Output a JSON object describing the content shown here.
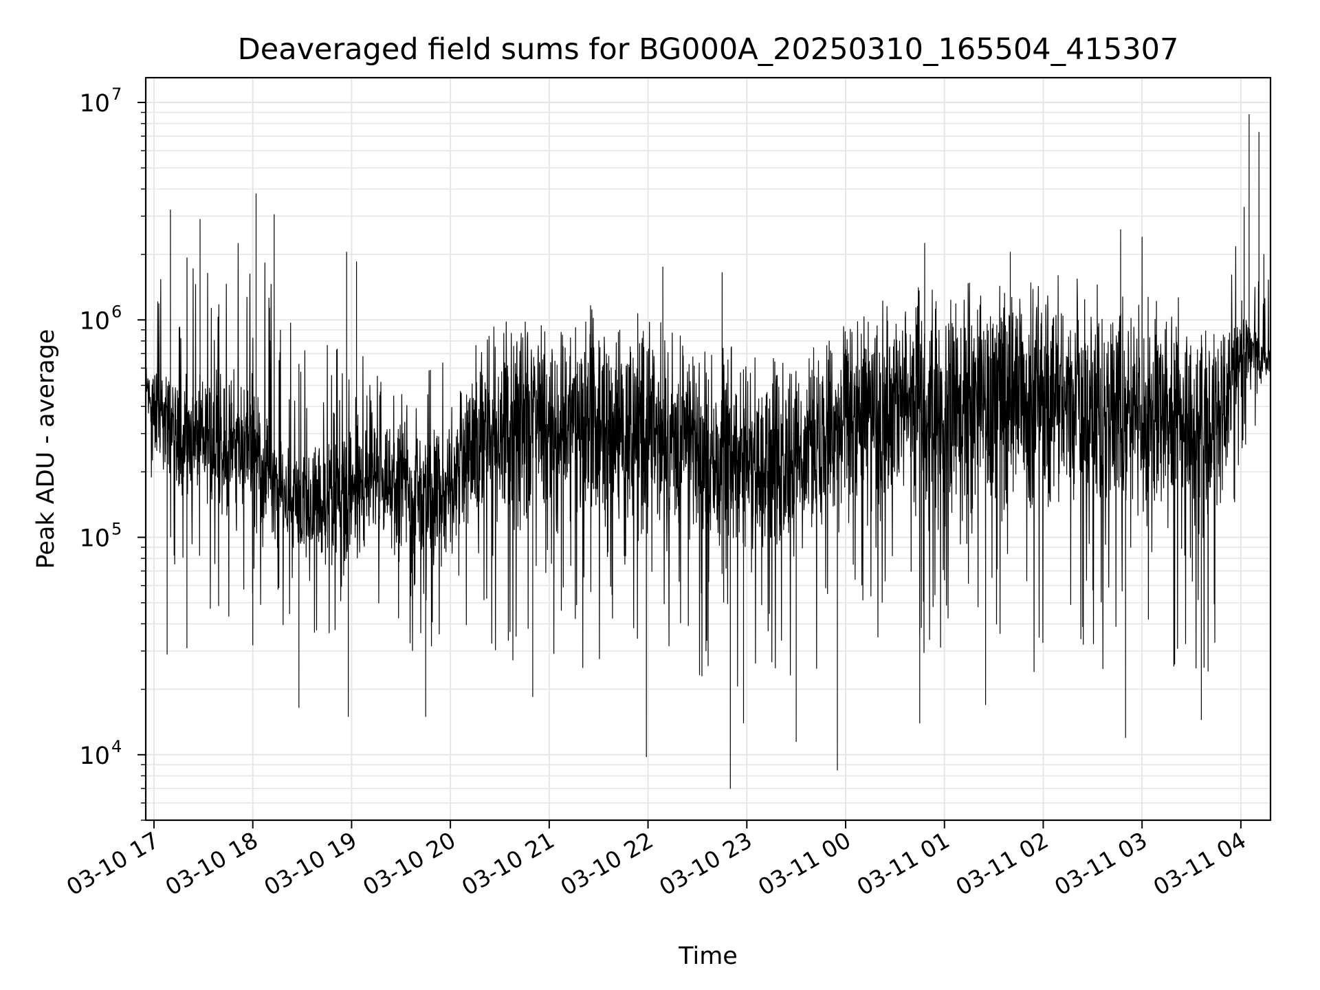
{
  "chart_data": {
    "type": "line",
    "title": "Deaveraged field sums for BG000A_20250310_165504_415307",
    "xlabel": "Time",
    "ylabel": "Peak ADU - average",
    "yscale": "log",
    "ylim": [
      5000,
      13000000
    ],
    "xlim": [
      "2025-03-10 16:55",
      "2025-03-11 04:18"
    ],
    "grid": true,
    "line_color": "#000000",
    "grid_color": "#e6e6e6",
    "x_ticks": [
      {
        "value": "2025-03-10 17:00",
        "label": "03-10 17"
      },
      {
        "value": "2025-03-10 18:00",
        "label": "03-10 18"
      },
      {
        "value": "2025-03-10 19:00",
        "label": "03-10 19"
      },
      {
        "value": "2025-03-10 20:00",
        "label": "03-10 20"
      },
      {
        "value": "2025-03-10 21:00",
        "label": "03-10 21"
      },
      {
        "value": "2025-03-10 22:00",
        "label": "03-10 22"
      },
      {
        "value": "2025-03-10 23:00",
        "label": "03-10 23"
      },
      {
        "value": "2025-03-11 00:00",
        "label": "03-11 00"
      },
      {
        "value": "2025-03-11 01:00",
        "label": "03-11 01"
      },
      {
        "value": "2025-03-11 02:00",
        "label": "03-11 02"
      },
      {
        "value": "2025-03-11 03:00",
        "label": "03-11 03"
      },
      {
        "value": "2025-03-11 04:00",
        "label": "03-11 04"
      }
    ],
    "y_ticks": [
      {
        "value": 10000,
        "base": "10",
        "exp": "4"
      },
      {
        "value": 100000,
        "base": "10",
        "exp": "5"
      },
      {
        "value": 1000000,
        "base": "10",
        "exp": "6"
      },
      {
        "value": 10000000,
        "base": "10",
        "exp": "7"
      }
    ],
    "series": [
      {
        "x": [
          "2025-03-10 16:55",
          "2025-03-10 17:00",
          "2025-03-10 17:15",
          "2025-03-10 17:30",
          "2025-03-10 17:45",
          "2025-03-10 18:00",
          "2025-03-10 18:15",
          "2025-03-10 18:30",
          "2025-03-10 18:45",
          "2025-03-10 19:00",
          "2025-03-10 19:15",
          "2025-03-10 19:30",
          "2025-03-10 19:45",
          "2025-03-10 20:00",
          "2025-03-10 20:15",
          "2025-03-10 20:30",
          "2025-03-10 20:45",
          "2025-03-10 21:00",
          "2025-03-10 21:15",
          "2025-03-10 21:30",
          "2025-03-10 21:45",
          "2025-03-10 22:00",
          "2025-03-10 22:15",
          "2025-03-10 22:30",
          "2025-03-10 22:45",
          "2025-03-10 23:00",
          "2025-03-10 23:15",
          "2025-03-10 23:30",
          "2025-03-10 23:45",
          "2025-03-11 00:00",
          "2025-03-11 00:15",
          "2025-03-11 00:30",
          "2025-03-11 00:45",
          "2025-03-11 01:00",
          "2025-03-11 01:15",
          "2025-03-11 01:30",
          "2025-03-11 01:45",
          "2025-03-11 02:00",
          "2025-03-11 02:15",
          "2025-03-11 02:30",
          "2025-03-11 02:45",
          "2025-03-11 03:00",
          "2025-03-11 03:15",
          "2025-03-11 03:30",
          "2025-03-11 03:45",
          "2025-03-11 04:00",
          "2025-03-11 04:15"
        ],
        "median": [
          520000,
          400000,
          300000,
          280000,
          260000,
          280000,
          160000,
          140000,
          150000,
          160000,
          170000,
          160000,
          150000,
          170000,
          250000,
          300000,
          320000,
          320000,
          340000,
          320000,
          320000,
          310000,
          290000,
          260000,
          240000,
          230000,
          230000,
          240000,
          270000,
          350000,
          380000,
          400000,
          420000,
          430000,
          430000,
          440000,
          440000,
          440000,
          420000,
          400000,
          380000,
          380000,
          360000,
          350000,
          340000,
          750000,
          650000
        ],
        "low": [
          300000,
          100000,
          60000,
          50000,
          40000,
          50000,
          40000,
          35000,
          30000,
          30000,
          30000,
          30000,
          25000,
          30000,
          30000,
          25000,
          25000,
          30000,
          25000,
          25000,
          25000,
          25000,
          25000,
          20000,
          20000,
          20000,
          20000,
          20000,
          25000,
          25000,
          25000,
          25000,
          25000,
          22000,
          20000,
          22000,
          22000,
          22000,
          22000,
          22000,
          25000,
          25000,
          25000,
          20000,
          25000,
          200000,
          400000
        ],
        "high": [
          1400000,
          1800000,
          2500000,
          2200000,
          2000000,
          3500000,
          1500000,
          900000,
          900000,
          800000,
          600000,
          500000,
          600000,
          700000,
          800000,
          1000000,
          1000000,
          1000000,
          1100000,
          1200000,
          1200000,
          1100000,
          1000000,
          900000,
          800000,
          700000,
          700000,
          700000,
          800000,
          1000000,
          1200000,
          1400000,
          1500000,
          1600000,
          1600000,
          1600000,
          1600000,
          1600000,
          1600000,
          1500000,
          1400000,
          1500000,
          1400000,
          1200000,
          1000000,
          3000000,
          2000000
        ],
        "spikes_up": [
          {
            "x": "2025-03-10 17:10",
            "y": 3200000
          },
          {
            "x": "2025-03-10 17:28",
            "y": 2900000
          },
          {
            "x": "2025-03-10 18:02",
            "y": 3800000
          },
          {
            "x": "2025-03-10 18:13",
            "y": 3050000
          },
          {
            "x": "2025-03-10 18:57",
            "y": 2050000
          },
          {
            "x": "2025-03-10 19:03",
            "y": 1850000
          },
          {
            "x": "2025-03-10 22:09",
            "y": 1750000
          },
          {
            "x": "2025-03-10 22:45",
            "y": 1650000
          },
          {
            "x": "2025-03-11 00:48",
            "y": 2250000
          },
          {
            "x": "2025-03-11 01:40",
            "y": 2050000
          },
          {
            "x": "2025-03-11 02:47",
            "y": 2600000
          },
          {
            "x": "2025-03-11 03:00",
            "y": 2400000
          },
          {
            "x": "2025-03-11 04:02",
            "y": 3300000
          },
          {
            "x": "2025-03-11 04:05",
            "y": 8800000
          },
          {
            "x": "2025-03-11 04:11",
            "y": 7300000
          },
          {
            "x": "2025-03-11 04:14",
            "y": 2000000
          }
        ],
        "spikes_down": [
          {
            "x": "2025-03-10 17:08",
            "y": 29000
          },
          {
            "x": "2025-03-10 17:20",
            "y": 31000
          },
          {
            "x": "2025-03-10 18:00",
            "y": 32000
          },
          {
            "x": "2025-03-10 18:28",
            "y": 16500
          },
          {
            "x": "2025-03-10 18:58",
            "y": 15000
          },
          {
            "x": "2025-03-10 19:45",
            "y": 15000
          },
          {
            "x": "2025-03-10 20:50",
            "y": 18500
          },
          {
            "x": "2025-03-10 21:59",
            "y": 9800
          },
          {
            "x": "2025-03-10 22:50",
            "y": 7000
          },
          {
            "x": "2025-03-10 22:58",
            "y": 14000
          },
          {
            "x": "2025-03-10 23:30",
            "y": 11500
          },
          {
            "x": "2025-03-10 23:55",
            "y": 8500
          },
          {
            "x": "2025-03-11 00:45",
            "y": 14000
          },
          {
            "x": "2025-03-11 01:25",
            "y": 17000
          },
          {
            "x": "2025-03-11 02:50",
            "y": 12000
          },
          {
            "x": "2025-03-11 03:36",
            "y": 14500
          }
        ]
      }
    ]
  }
}
